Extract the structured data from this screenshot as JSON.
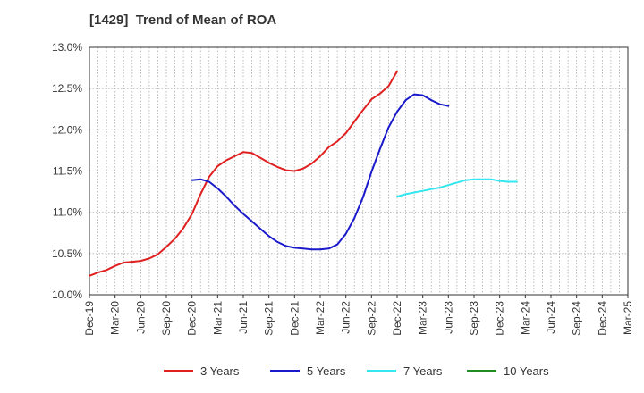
{
  "chart_data": {
    "type": "line",
    "title": "[1429]  Trend of Mean of ROA",
    "xlabel": "",
    "ylabel": "",
    "x_tick_labels": [
      "Dec-19",
      "Mar-20",
      "Jun-20",
      "Sep-20",
      "Dec-20",
      "Mar-21",
      "Jun-21",
      "Sep-21",
      "Dec-21",
      "Mar-22",
      "Jun-22",
      "Sep-22",
      "Dec-22",
      "Mar-23",
      "Jun-23",
      "Sep-23",
      "Dec-23",
      "Mar-24",
      "Jun-24",
      "Sep-24",
      "Dec-24",
      "Mar-25"
    ],
    "y_tick_labels": [
      "10.0%",
      "10.5%",
      "11.0%",
      "11.5%",
      "12.0%",
      "12.5%",
      "13.0%"
    ],
    "ylim": [
      10.0,
      13.0
    ],
    "y_unit": "%",
    "grid": true,
    "legend_position": "bottom",
    "series": [
      {
        "name": "3 Years",
        "color": "#e02020",
        "start_index": 0,
        "values": [
          10.23,
          10.27,
          10.3,
          10.35,
          10.39,
          10.4,
          10.41,
          10.44,
          10.49,
          10.58,
          10.68,
          10.81,
          10.98,
          11.22,
          11.43,
          11.56,
          11.63,
          11.68,
          11.73,
          11.72,
          11.66,
          11.6,
          11.55,
          11.51,
          11.5,
          11.53,
          11.59,
          11.68,
          11.79,
          11.86,
          11.96,
          12.1,
          12.24,
          12.37,
          12.44,
          12.53,
          12.71
        ]
      },
      {
        "name": "5 Years",
        "color": "#1a1acc",
        "start_index": 12,
        "values": [
          11.39,
          11.4,
          11.37,
          11.29,
          11.19,
          11.08,
          10.98,
          10.89,
          10.8,
          10.71,
          10.64,
          10.59,
          10.57,
          10.56,
          10.55,
          10.55,
          10.56,
          10.61,
          10.74,
          10.93,
          11.18,
          11.49,
          11.77,
          12.03,
          12.22,
          12.36,
          12.43,
          12.42,
          12.36,
          12.31,
          12.29
        ]
      },
      {
        "name": "7 Years",
        "color": "#33e6f0",
        "start_index": 36,
        "values": [
          11.19,
          11.22,
          11.24,
          11.26,
          11.28,
          11.3,
          11.33,
          11.36,
          11.39,
          11.4,
          11.4,
          11.4,
          11.38,
          11.37,
          11.37
        ]
      },
      {
        "name": "10 Years",
        "color": "#228b22",
        "start_index": 0,
        "values": []
      }
    ]
  }
}
